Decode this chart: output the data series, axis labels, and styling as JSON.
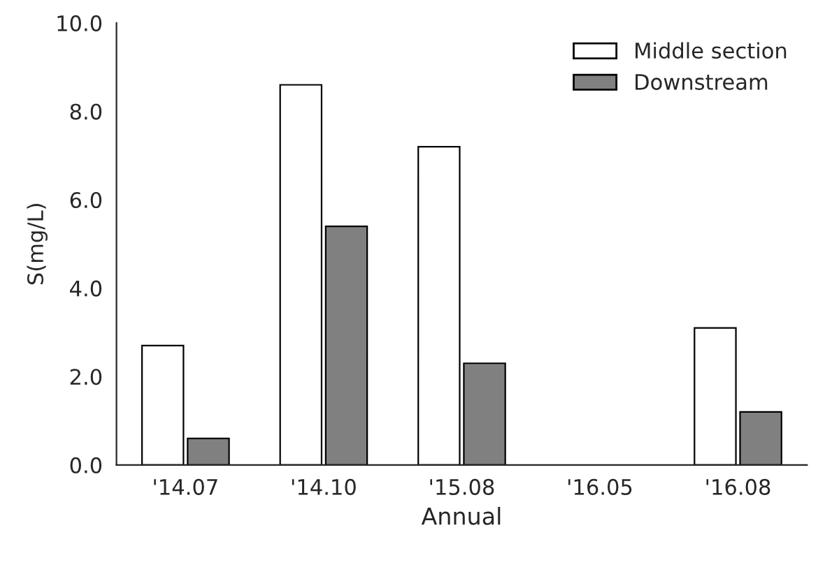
{
  "chart_data": {
    "type": "bar",
    "xlabel": "Annual",
    "ylabel": "S(mg/L)",
    "categories": [
      "'14.07",
      "'14.10",
      "'15.08",
      "'16.05",
      "'16.08"
    ],
    "series": [
      {
        "name": "Middle section",
        "color": "#ffffff",
        "values": [
          2.7,
          8.6,
          7.2,
          null,
          3.1
        ]
      },
      {
        "name": "Downstream",
        "color": "#808080",
        "values": [
          0.6,
          5.4,
          2.3,
          null,
          1.2
        ]
      }
    ],
    "ylim": [
      0,
      10
    ],
    "yticks": [
      {
        "value": 0,
        "label": "0.0"
      },
      {
        "value": 2,
        "label": "2.0"
      },
      {
        "value": 4,
        "label": "4.0"
      },
      {
        "value": 6,
        "label": "6.0"
      },
      {
        "value": 8,
        "label": "8.0"
      },
      {
        "value": 10,
        "label": "10.0"
      }
    ],
    "legend": "top right",
    "grid": false
  }
}
